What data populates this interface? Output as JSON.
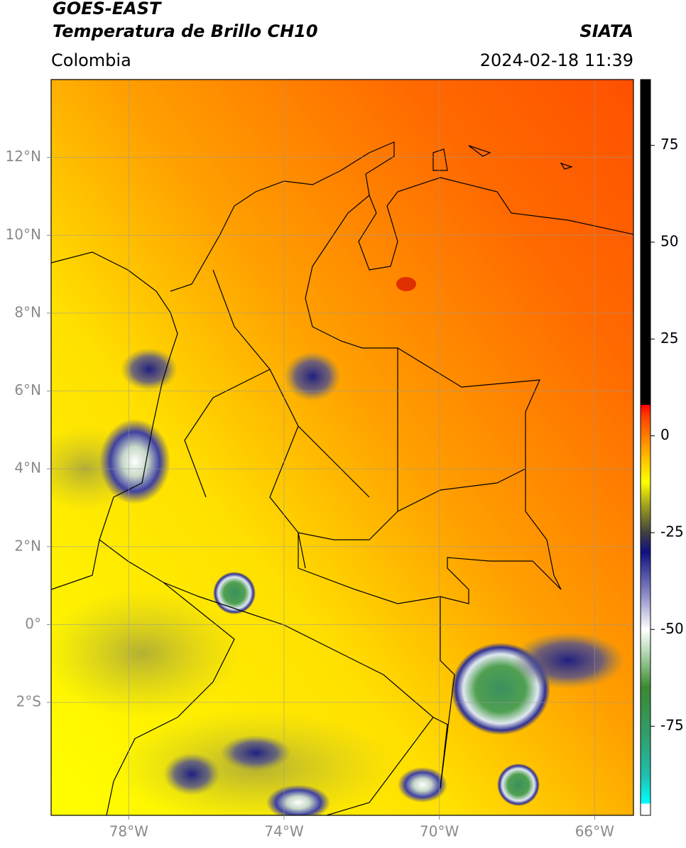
{
  "header": {
    "satellite": "GOES-EAST",
    "product": "Temperatura de Brillo CH10",
    "region": "Colombia",
    "source": "SIATA",
    "datetime": "2024-02-18 11:39"
  },
  "map": {
    "xlim": [
      -80,
      -65
    ],
    "ylim": [
      -4.9,
      14
    ],
    "xticks": [
      {
        "value": -78,
        "label": "78°W"
      },
      {
        "value": -74,
        "label": "74°W"
      },
      {
        "value": -70,
        "label": "70°W"
      },
      {
        "value": -66,
        "label": "66°W"
      }
    ],
    "yticks": [
      {
        "value": 12,
        "label": "12°N"
      },
      {
        "value": 10,
        "label": "10°N"
      },
      {
        "value": 8,
        "label": "8°N"
      },
      {
        "value": 6,
        "label": "6°N"
      },
      {
        "value": 4,
        "label": "4°N"
      },
      {
        "value": 2,
        "label": "2°N"
      },
      {
        "value": 0,
        "label": "0°"
      },
      {
        "value": -2,
        "label": "2°S"
      }
    ],
    "grid": true
  },
  "colorbar": {
    "lim": [
      -98,
      92
    ],
    "ticks": [
      75,
      50,
      25,
      0,
      -25,
      -50,
      -75
    ],
    "colormap": [
      [
        -98,
        "#ffffff"
      ],
      [
        -95,
        "#ffffff"
      ],
      [
        -95,
        "#00ffff"
      ],
      [
        -88,
        "#20c0b0"
      ],
      [
        -78,
        "#30a070"
      ],
      [
        -65,
        "#3a8a30"
      ],
      [
        -55,
        "#c0e0c0"
      ],
      [
        -50,
        "#ffffff"
      ],
      [
        -40,
        "#8080c0"
      ],
      [
        -30,
        "#101080"
      ],
      [
        -25,
        "#404040"
      ],
      [
        -18,
        "#a0a020"
      ],
      [
        -12,
        "#ffff00"
      ],
      [
        -3,
        "#ffa000"
      ],
      [
        5,
        "#ff4000"
      ],
      [
        8,
        "#ff0000"
      ],
      [
        8,
        "#000000"
      ],
      [
        92,
        "#000000"
      ]
    ]
  }
}
